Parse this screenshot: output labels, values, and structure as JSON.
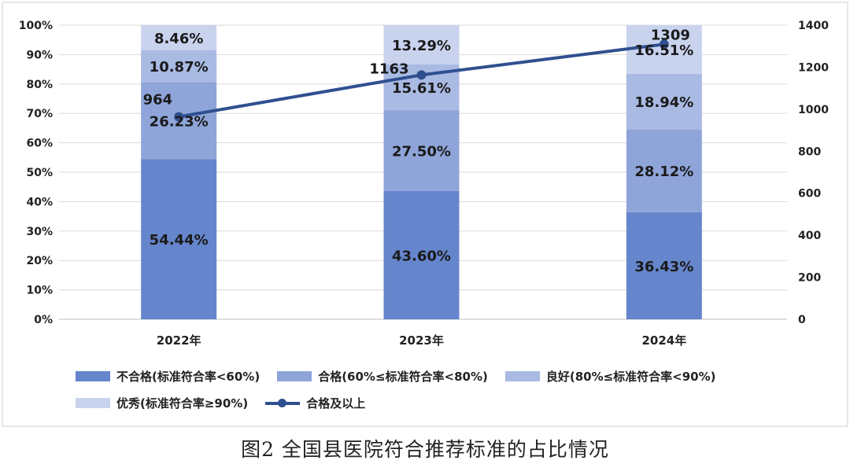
{
  "chart_data": {
    "type": "bar",
    "stacked": true,
    "categories": [
      "2022年",
      "2023年",
      "2024年"
    ],
    "series": [
      {
        "name": "不合格(标准符合率<60%)",
        "values": [
          54.44,
          43.6,
          36.43
        ],
        "labels": [
          "54.44%",
          "43.60%",
          "36.43%"
        ],
        "color": "#6585cc"
      },
      {
        "name": "合格(60%≤标准符合率<80%)",
        "values": [
          26.23,
          27.5,
          28.12
        ],
        "labels": [
          "26.23%",
          "27.50%",
          "28.12%"
        ],
        "color": "#8fa5d9"
      },
      {
        "name": "良好(80%≤标准符合率<90%)",
        "values": [
          10.87,
          15.61,
          18.94
        ],
        "labels": [
          "10.87%",
          "15.61%",
          "18.94%"
        ],
        "color": "#a9bae3"
      },
      {
        "name": "优秀(标准符合率≥90%)",
        "values": [
          8.46,
          13.29,
          16.51
        ],
        "labels": [
          "8.46%",
          "13.29%",
          "16.51%"
        ],
        "color": "#c9d3ee"
      }
    ],
    "line_series": {
      "name": "合格及以上",
      "values": [
        964,
        1163,
        1309
      ],
      "labels": [
        "964",
        "1163",
        "1309"
      ],
      "color": "#2f4f8f",
      "axis": "right"
    },
    "y_left": {
      "ticks": [
        "0%",
        "10%",
        "20%",
        "30%",
        "40%",
        "50%",
        "60%",
        "70%",
        "80%",
        "90%",
        "100%"
      ],
      "range": [
        0,
        100
      ]
    },
    "y_right": {
      "ticks": [
        "0",
        "200",
        "400",
        "600",
        "800",
        "1000",
        "1200",
        "1400"
      ],
      "range": [
        0,
        1400
      ]
    },
    "grid": true,
    "legend_position": "bottom"
  },
  "caption": "图2 全国县医院符合推荐标准的占比情况"
}
